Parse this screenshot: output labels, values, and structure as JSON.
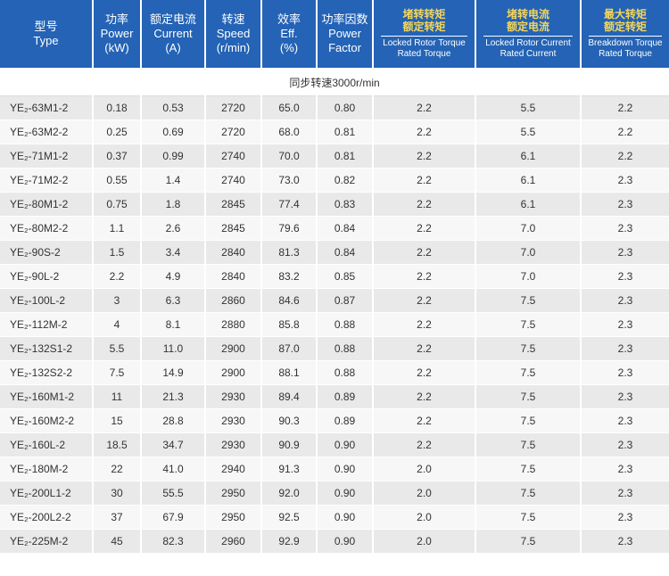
{
  "headers": [
    {
      "zh": "型号",
      "en": "Type"
    },
    {
      "zh": "功率",
      "en": "Power",
      "unit": "(kW)"
    },
    {
      "zh": "额定电流",
      "en": "Current",
      "unit": "(A)"
    },
    {
      "zh": "转速",
      "en": "Speed",
      "unit": "(r/min)"
    },
    {
      "zh": "效率",
      "en": "Eff.",
      "unit": "(%)"
    },
    {
      "zh": "功率因数",
      "en": "Power",
      "unit": "Factor"
    },
    {
      "zh1": "堵转转矩",
      "zh2": "额定转矩",
      "en1": "Locked Rotor Torque",
      "en2": "Rated Torque"
    },
    {
      "zh1": "堵转电流",
      "zh2": "额定电流",
      "en1": "Locked Rotor Current",
      "en2": "Rated Current"
    },
    {
      "zh1": "最大转矩",
      "zh2": "额定转矩",
      "en1": "Breakdown Torque",
      "en2": "Rated Torque"
    }
  ],
  "sync_label": "同步转速3000r/min",
  "rows": [
    [
      "YE₂-63M1-2",
      "0.18",
      "0.53",
      "2720",
      "65.0",
      "0.80",
      "2.2",
      "5.5",
      "2.2"
    ],
    [
      "YE₂-63M2-2",
      "0.25",
      "0.69",
      "2720",
      "68.0",
      "0.81",
      "2.2",
      "5.5",
      "2.2"
    ],
    [
      "YE₂-71M1-2",
      "0.37",
      "0.99",
      "2740",
      "70.0",
      "0.81",
      "2.2",
      "6.1",
      "2.2"
    ],
    [
      "YE₂-71M2-2",
      "0.55",
      "1.4",
      "2740",
      "73.0",
      "0.82",
      "2.2",
      "6.1",
      "2.3"
    ],
    [
      "YE₂-80M1-2",
      "0.75",
      "1.8",
      "2845",
      "77.4",
      "0.83",
      "2.2",
      "6.1",
      "2.3"
    ],
    [
      "YE₂-80M2-2",
      "1.1",
      "2.6",
      "2845",
      "79.6",
      "0.84",
      "2.2",
      "7.0",
      "2.3"
    ],
    [
      "YE₂-90S-2",
      "1.5",
      "3.4",
      "2840",
      "81.3",
      "0.84",
      "2.2",
      "7.0",
      "2.3"
    ],
    [
      "YE₂-90L-2",
      "2.2",
      "4.9",
      "2840",
      "83.2",
      "0.85",
      "2.2",
      "7.0",
      "2.3"
    ],
    [
      "YE₂-100L-2",
      "3",
      "6.3",
      "2860",
      "84.6",
      "0.87",
      "2.2",
      "7.5",
      "2.3"
    ],
    [
      "YE₂-112M-2",
      "4",
      "8.1",
      "2880",
      "85.8",
      "0.88",
      "2.2",
      "7.5",
      "2.3"
    ],
    [
      "YE₂-132S1-2",
      "5.5",
      "11.0",
      "2900",
      "87.0",
      "0.88",
      "2.2",
      "7.5",
      "2.3"
    ],
    [
      "YE₂-132S2-2",
      "7.5",
      "14.9",
      "2900",
      "88.1",
      "0.88",
      "2.2",
      "7.5",
      "2.3"
    ],
    [
      "YE₂-160M1-2",
      "11",
      "21.3",
      "2930",
      "89.4",
      "0.89",
      "2.2",
      "7.5",
      "2.3"
    ],
    [
      "YE₂-160M2-2",
      "15",
      "28.8",
      "2930",
      "90.3",
      "0.89",
      "2.2",
      "7.5",
      "2.3"
    ],
    [
      "YE₂-160L-2",
      "18.5",
      "34.7",
      "2930",
      "90.9",
      "0.90",
      "2.2",
      "7.5",
      "2.3"
    ],
    [
      "YE₂-180M-2",
      "22",
      "41.0",
      "2940",
      "91.3",
      "0.90",
      "2.0",
      "7.5",
      "2.3"
    ],
    [
      "YE₂-200L1-2",
      "30",
      "55.5",
      "2950",
      "92.0",
      "0.90",
      "2.0",
      "7.5",
      "2.3"
    ],
    [
      "YE₂-200L2-2",
      "37",
      "67.9",
      "2950",
      "92.5",
      "0.90",
      "2.0",
      "7.5",
      "2.3"
    ],
    [
      "YE₂-225M-2",
      "45",
      "82.3",
      "2960",
      "92.9",
      "0.90",
      "2.0",
      "7.5",
      "2.3"
    ]
  ],
  "colors": {
    "header_bg": "#2463b5",
    "header_accent": "#f4d65a",
    "row_dark": "#e9e9ea",
    "row_light": "#f7f7f7"
  }
}
